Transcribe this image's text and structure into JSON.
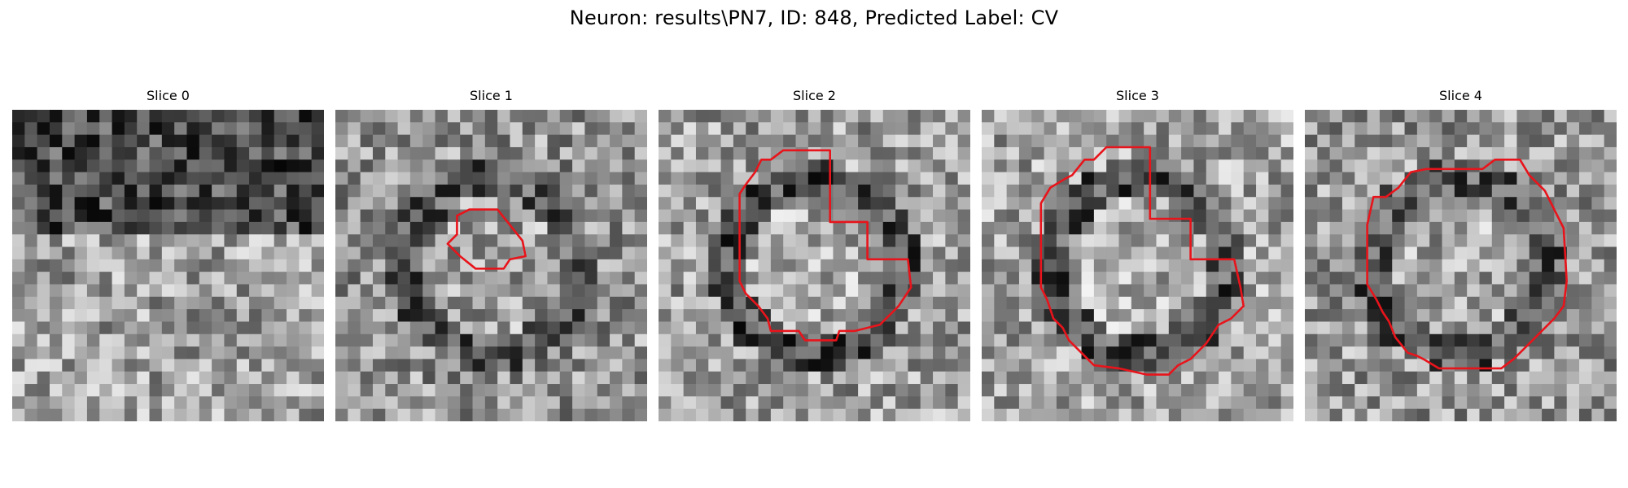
{
  "title": "Neuron: results\\PN7, ID: 848, Predicted Label: CV",
  "panels": [
    {
      "label": "Slice 0",
      "contour_color": "#e8141b",
      "seed": 11,
      "tone": [
        0.4,
        0.55
      ],
      "contour": []
    },
    {
      "label": "Slice 1",
      "contour_color": "#e8141b",
      "seed": 23,
      "tone": [
        0.58,
        0.42
      ],
      "contour": [
        [
          0.43,
          0.32
        ],
        [
          0.52,
          0.32
        ],
        [
          0.56,
          0.37
        ],
        [
          0.6,
          0.42
        ],
        [
          0.61,
          0.47
        ],
        [
          0.56,
          0.48
        ],
        [
          0.54,
          0.51
        ],
        [
          0.47,
          0.51
        ],
        [
          0.45,
          0.51
        ],
        [
          0.4,
          0.47
        ],
        [
          0.36,
          0.43
        ],
        [
          0.39,
          0.4
        ],
        [
          0.39,
          0.34
        ]
      ]
    },
    {
      "label": "Slice 2",
      "contour_color": "#e8141b",
      "seed": 37,
      "tone": [
        0.62,
        0.38
      ],
      "contour": [
        [
          0.33,
          0.16
        ],
        [
          0.36,
          0.16
        ],
        [
          0.4,
          0.13
        ],
        [
          0.55,
          0.13
        ],
        [
          0.55,
          0.36
        ],
        [
          0.6,
          0.36
        ],
        [
          0.67,
          0.36
        ],
        [
          0.67,
          0.48
        ],
        [
          0.8,
          0.48
        ],
        [
          0.81,
          0.57
        ],
        [
          0.77,
          0.63
        ],
        [
          0.75,
          0.65
        ],
        [
          0.73,
          0.67
        ],
        [
          0.71,
          0.69
        ],
        [
          0.63,
          0.71
        ],
        [
          0.58,
          0.71
        ],
        [
          0.57,
          0.74
        ],
        [
          0.47,
          0.74
        ],
        [
          0.45,
          0.71
        ],
        [
          0.36,
          0.71
        ],
        [
          0.35,
          0.67
        ],
        [
          0.32,
          0.63
        ],
        [
          0.28,
          0.59
        ],
        [
          0.26,
          0.55
        ],
        [
          0.26,
          0.27
        ],
        [
          0.28,
          0.24
        ],
        [
          0.31,
          0.2
        ]
      ]
    },
    {
      "label": "Slice 3",
      "contour_color": "#e8141b",
      "seed": 51,
      "tone": [
        0.64,
        0.4
      ],
      "contour": [
        [
          0.29,
          0.21
        ],
        [
          0.33,
          0.16
        ],
        [
          0.36,
          0.16
        ],
        [
          0.4,
          0.12
        ],
        [
          0.54,
          0.12
        ],
        [
          0.54,
          0.35
        ],
        [
          0.59,
          0.35
        ],
        [
          0.67,
          0.35
        ],
        [
          0.67,
          0.48
        ],
        [
          0.73,
          0.48
        ],
        [
          0.81,
          0.48
        ],
        [
          0.83,
          0.57
        ],
        [
          0.84,
          0.63
        ],
        [
          0.8,
          0.67
        ],
        [
          0.76,
          0.69
        ],
        [
          0.72,
          0.75
        ],
        [
          0.67,
          0.8
        ],
        [
          0.63,
          0.82
        ],
        [
          0.6,
          0.85
        ],
        [
          0.53,
          0.85
        ],
        [
          0.44,
          0.83
        ],
        [
          0.36,
          0.82
        ],
        [
          0.28,
          0.74
        ],
        [
          0.26,
          0.7
        ],
        [
          0.23,
          0.67
        ],
        [
          0.21,
          0.61
        ],
        [
          0.19,
          0.57
        ],
        [
          0.19,
          0.3
        ],
        [
          0.22,
          0.25
        ],
        [
          0.27,
          0.22
        ]
      ]
    },
    {
      "label": "Slice 4",
      "contour_color": "#e8141b",
      "seed": 67,
      "tone": [
        0.6,
        0.42
      ],
      "contour": [
        [
          0.22,
          0.28
        ],
        [
          0.26,
          0.28
        ],
        [
          0.3,
          0.25
        ],
        [
          0.34,
          0.2
        ],
        [
          0.39,
          0.19
        ],
        [
          0.57,
          0.19
        ],
        [
          0.61,
          0.16
        ],
        [
          0.69,
          0.16
        ],
        [
          0.72,
          0.21
        ],
        [
          0.77,
          0.26
        ],
        [
          0.81,
          0.34
        ],
        [
          0.83,
          0.38
        ],
        [
          0.84,
          0.55
        ],
        [
          0.83,
          0.63
        ],
        [
          0.8,
          0.67
        ],
        [
          0.72,
          0.75
        ],
        [
          0.67,
          0.8
        ],
        [
          0.63,
          0.83
        ],
        [
          0.59,
          0.83
        ],
        [
          0.43,
          0.83
        ],
        [
          0.38,
          0.8
        ],
        [
          0.36,
          0.79
        ],
        [
          0.33,
          0.78
        ],
        [
          0.29,
          0.73
        ],
        [
          0.27,
          0.68
        ],
        [
          0.25,
          0.65
        ],
        [
          0.23,
          0.61
        ],
        [
          0.2,
          0.56
        ],
        [
          0.2,
          0.4
        ],
        [
          0.2,
          0.37
        ]
      ]
    }
  ]
}
